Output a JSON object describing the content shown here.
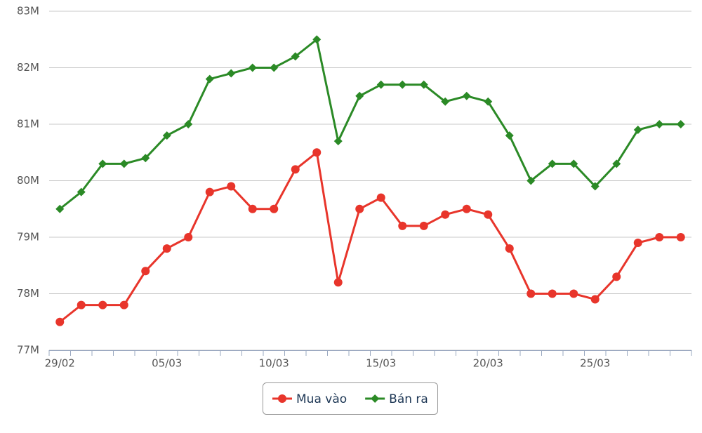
{
  "chart_data": {
    "type": "line",
    "categories": [
      "29/02",
      null,
      null,
      null,
      null,
      "05/03",
      null,
      null,
      null,
      null,
      "10/03",
      null,
      null,
      null,
      null,
      "15/03",
      null,
      null,
      null,
      null,
      "20/03",
      null,
      null,
      null,
      null,
      "25/03",
      null,
      null,
      null,
      null
    ],
    "series": [
      {
        "name": "Mua vào",
        "color": "#e8352b",
        "marker": "circle",
        "values": [
          77.5,
          77.8,
          77.8,
          77.8,
          78.4,
          78.8,
          79.0,
          79.8,
          79.9,
          79.5,
          79.5,
          80.2,
          80.5,
          78.2,
          79.5,
          79.7,
          79.2,
          79.2,
          79.4,
          79.5,
          79.4,
          78.8,
          78.0,
          78.0,
          78.0,
          77.9,
          78.3,
          78.9,
          79.0,
          79.0
        ]
      },
      {
        "name": "Bán ra",
        "color": "#2b8a26",
        "marker": "diamond",
        "values": [
          79.5,
          79.8,
          80.3,
          80.3,
          80.4,
          80.8,
          81.0,
          81.8,
          81.9,
          82.0,
          82.0,
          82.2,
          82.5,
          80.7,
          81.5,
          81.7,
          81.7,
          81.7,
          81.4,
          81.5,
          81.4,
          80.8,
          80.0,
          80.3,
          80.3,
          79.9,
          80.3,
          80.9,
          81.0,
          81.0
        ]
      }
    ],
    "ylim": [
      77,
      83
    ],
    "yticks": [
      {
        "value": 77,
        "label": "77M"
      },
      {
        "value": 78,
        "label": "78M"
      },
      {
        "value": 79,
        "label": "79M"
      },
      {
        "value": 80,
        "label": "80M"
      },
      {
        "value": 81,
        "label": "81M"
      },
      {
        "value": 82,
        "label": "82M"
      },
      {
        "value": 83,
        "label": "83M"
      }
    ],
    "grid": true,
    "legend": "bottom"
  }
}
